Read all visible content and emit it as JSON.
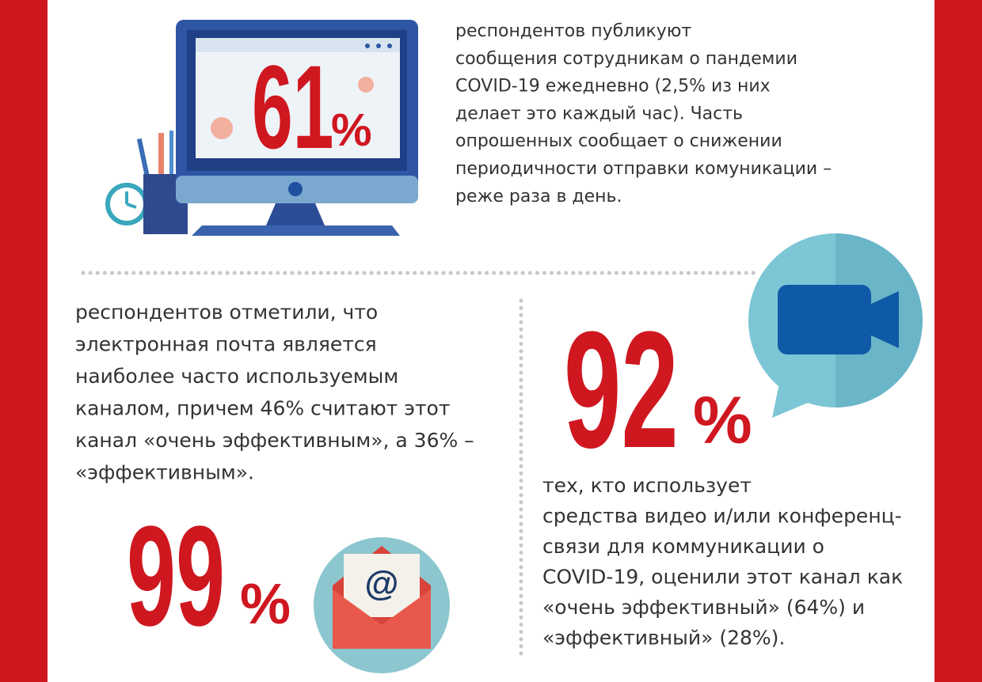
{
  "top": {
    "stat": {
      "number": "61",
      "unit": "%"
    },
    "lines": [
      "респондентов публикуют",
      "сообщения сотрудникам о пандемии",
      "COVID-19 ежедневно (2,5% из них",
      "делает это каждый час). Часть",
      "опрошенных сообщает о снижении",
      "периодичности отправки комуникации –",
      "реже раза в день."
    ]
  },
  "email": {
    "stat": {
      "number": "99",
      "unit": "%"
    },
    "lines": [
      "респондентов отметили, что",
      "электронная почта является",
      "наиболее часто используемым",
      "каналом, причем 46% считают этот",
      "канал «очень эффективным», а 36% –",
      "«эффективным»."
    ]
  },
  "video": {
    "stat": {
      "number": "92",
      "unit": "%"
    },
    "lines": [
      "тех, кто использует",
      "средства видео и/или конференц-",
      "связи для коммуникации о",
      "COVID-19, оценили этот канал как",
      "«очень эффективный» (64%) и",
      "«эффективный» (28%)."
    ]
  }
}
